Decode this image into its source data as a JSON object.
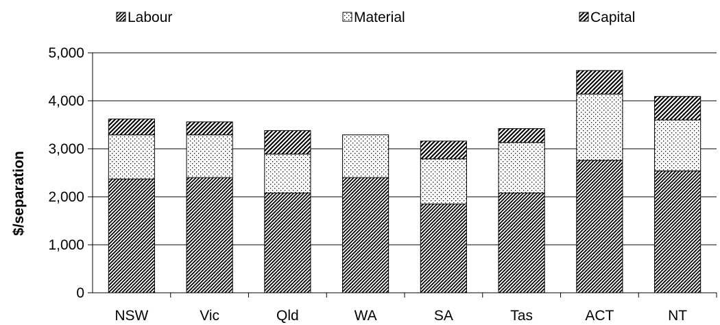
{
  "chart_data": {
    "type": "bar",
    "stacked": true,
    "categories": [
      "NSW",
      "Vic",
      "Qld",
      "WA",
      "SA",
      "Tas",
      "ACT",
      "NT"
    ],
    "series": [
      {
        "name": "Labour",
        "pattern": "dense-diagonal",
        "values": [
          2370,
          2400,
          2080,
          2400,
          1850,
          2080,
          2760,
          2540
        ]
      },
      {
        "name": "Material",
        "pattern": "dots",
        "values": [
          920,
          890,
          810,
          890,
          940,
          1050,
          1380,
          1060
        ]
      },
      {
        "name": "Capital",
        "pattern": "wide-diagonal",
        "values": [
          330,
          270,
          490,
          0,
          370,
          290,
          490,
          490
        ]
      }
    ],
    "title": "",
    "xlabel": "",
    "ylabel": "$/separation",
    "ylim": [
      0,
      5000
    ],
    "yticks": [
      0,
      1000,
      2000,
      3000,
      4000,
      5000
    ],
    "ytick_labels": [
      "0",
      "1,000",
      "2,000",
      "3,000",
      "4,000",
      "5,000"
    ],
    "grid": true,
    "legend_position": "top"
  }
}
